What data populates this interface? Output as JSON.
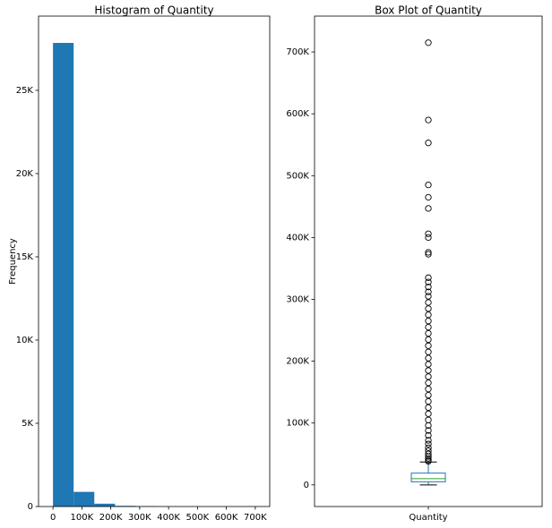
{
  "chart_data": [
    {
      "type": "histogram",
      "title": "Histogram of Quantity",
      "ylabel": "Frequency",
      "color": "#1f77b4",
      "bins": [
        0,
        71500,
        143000,
        214500,
        286000,
        357500,
        429000,
        500500,
        572000,
        643500,
        715000
      ],
      "values": [
        27850,
        880,
        170,
        40,
        20,
        6,
        3,
        1,
        1,
        1
      ],
      "xlim": [
        -50000,
        750000
      ],
      "xticks": [
        0,
        {
          "value": 100000,
          "label": "100K"
        },
        {
          "value": 200000,
          "label": "200K"
        },
        {
          "value": 300000,
          "label": "300K"
        },
        {
          "value": 400000,
          "label": "400K"
        },
        {
          "value": 500000,
          "label": "500K"
        },
        {
          "value": 600000,
          "label": "600K"
        },
        {
          "value": 700000,
          "label": "700K"
        }
      ],
      "ylim": [
        0,
        29460
      ],
      "yticks": [
        0,
        {
          "value": 5000,
          "label": "5K"
        },
        {
          "value": 10000,
          "label": "10K"
        },
        {
          "value": 15000,
          "label": "15K"
        },
        {
          "value": 20000,
          "label": "20K"
        },
        {
          "value": 25000,
          "label": "25K"
        }
      ]
    },
    {
      "type": "box",
      "title": "Box Plot of Quantity",
      "categories": [
        "Quantity"
      ],
      "color": "#1f77b4",
      "median_color": "#2ca02c",
      "whisker_low": 0,
      "q1": 5000,
      "median": 10000,
      "q3": 19000,
      "whisker_high": 37000,
      "outliers": [
        38000,
        40000,
        43000,
        46000,
        50000,
        55000,
        60000,
        66000,
        72000,
        80000,
        88000,
        96000,
        105000,
        115000,
        125000,
        135000,
        145000,
        155000,
        165000,
        175000,
        185000,
        195000,
        205000,
        215000,
        225000,
        235000,
        245000,
        255000,
        265000,
        275000,
        285000,
        295000,
        305000,
        312000,
        320000,
        328000,
        335000,
        373000,
        376000,
        400000,
        406000,
        447000,
        465000,
        485000,
        553000,
        590000,
        715000
      ],
      "ylim": [
        -35000,
        758000
      ],
      "yticks": [
        0,
        {
          "value": 100000,
          "label": "100K"
        },
        {
          "value": 200000,
          "label": "200K"
        },
        {
          "value": 300000,
          "label": "300K"
        },
        {
          "value": 400000,
          "label": "400K"
        },
        {
          "value": 500000,
          "label": "500K"
        },
        {
          "value": 600000,
          "label": "600K"
        },
        {
          "value": 700000,
          "label": "700K"
        }
      ]
    }
  ]
}
